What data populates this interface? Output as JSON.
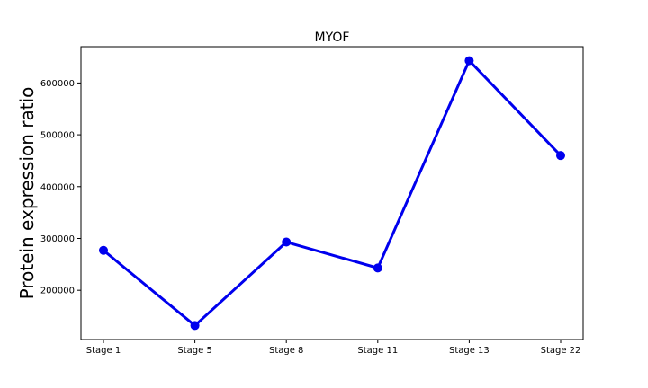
{
  "chart_data": {
    "type": "line",
    "title": "MYOF",
    "xlabel": "",
    "ylabel": "Protein expression ratio",
    "categories": [
      "Stage 1",
      "Stage 5",
      "Stage 8",
      "Stage 11",
      "Stage 13",
      "Stage 22"
    ],
    "series": [
      {
        "values": [
          277000,
          132000,
          293000,
          243000,
          643000,
          460000
        ]
      }
    ],
    "ylim": [
      105000,
      670000
    ],
    "yticks": [
      200000,
      300000,
      400000,
      500000,
      600000
    ],
    "ytick_labels": [
      "200000",
      "300000",
      "400000",
      "500000",
      "600000"
    ],
    "grid": false,
    "legend": "none",
    "colors": {
      "line": "#0000ee",
      "marker": "#0000ee",
      "axes": "#000000"
    }
  }
}
